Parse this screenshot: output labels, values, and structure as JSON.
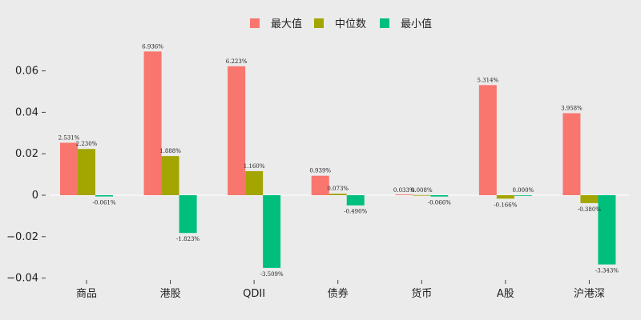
{
  "chart_data": {
    "type": "bar",
    "categories": [
      "商品",
      "港股",
      "QDII",
      "债券",
      "货币",
      "A股",
      "沪港深"
    ],
    "series": [
      {
        "name": "最大值",
        "color": "#f8766d",
        "values": [
          0.02531,
          0.06936,
          0.06223,
          0.00939,
          0.00033,
          0.05314,
          0.03958
        ],
        "labels": [
          "2.531%",
          "6.936%",
          "6.223%",
          "0.939%",
          "0.033%",
          "5.314%",
          "3.958%"
        ]
      },
      {
        "name": "中位数",
        "color": "#a3a500",
        "values": [
          0.0223,
          0.01888,
          0.0116,
          0.00073,
          8e-05,
          -0.00166,
          -0.0038
        ],
        "labels": [
          "2.230%",
          "1.888%",
          "1.160%",
          "0.073%",
          "0.008%",
          "-0.166%",
          "-0.380%"
        ]
      },
      {
        "name": "最小值",
        "color": "#00bf7d",
        "values": [
          -0.00061,
          -0.01823,
          -0.03509,
          -0.0049,
          -0.00066,
          0.0,
          -0.03343
        ],
        "labels": [
          "-0.061%",
          "-1.823%",
          "-3.509%",
          "-0.490%",
          "-0.066%",
          "0.000%",
          "-3.343%"
        ]
      }
    ],
    "yticks": [
      -0.04,
      -0.02,
      0,
      0.02,
      0.04,
      0.06
    ],
    "ytick_labels": [
      "−0.04",
      "−0.02",
      "0",
      "0.02",
      "0.04",
      "0.06"
    ],
    "ylim": [
      -0.04,
      0.075
    ],
    "legend": "top-center",
    "grid": false,
    "title": "",
    "xlabel": "",
    "ylabel": ""
  }
}
